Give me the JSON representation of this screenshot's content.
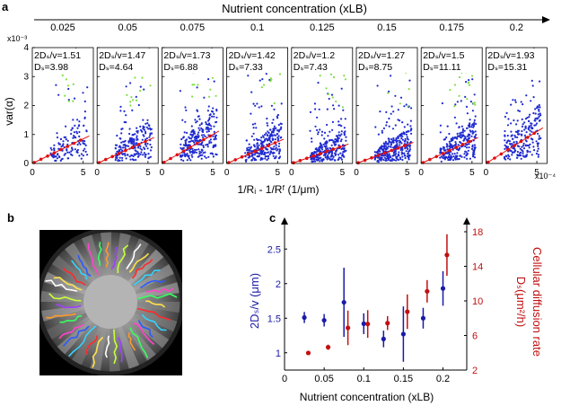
{
  "panel_labels": {
    "a": "a",
    "b": "b",
    "c": "c"
  },
  "chart_data": [
    {
      "type": "scatter",
      "title": "Nutrient concentration (xLB)",
      "concentrations": [
        "0.025",
        "0.05",
        "0.075",
        "0.1",
        "0.125",
        "0.15",
        "0.175",
        "0.2"
      ],
      "ylabel": "var(α)",
      "xlabel": "1/Rᵢ - 1/Rᶠ (1/μm)",
      "y_exponent": "x10⁻³",
      "x_exponent": "x10⁻⁴",
      "ylim": [
        0,
        4
      ],
      "yticks": [
        "0",
        "1",
        "2",
        "3",
        "4"
      ],
      "xlim": [
        0,
        6
      ],
      "xticks": [
        "0",
        "5"
      ],
      "subplots": [
        {
          "conc": 0.025,
          "ratio_label": "2Dₛ/v=1.51",
          "ds_label": "Dₛ=3.98",
          "slope": 0.17,
          "n_blue": 130,
          "n_green": 8
        },
        {
          "conc": 0.05,
          "ratio_label": "2Dₛ/v=1.47",
          "ds_label": "Dₛ=4.64",
          "slope": 0.16,
          "n_blue": 200,
          "n_green": 10
        },
        {
          "conc": 0.075,
          "ratio_label": "2Dₛ/v=1.73",
          "ds_label": "Dₛ=6.88",
          "slope": 0.2,
          "n_blue": 240,
          "n_green": 12
        },
        {
          "conc": 0.1,
          "ratio_label": "2Dₛ/v=1.42",
          "ds_label": "Dₛ=7.33",
          "slope": 0.15,
          "n_blue": 260,
          "n_green": 10
        },
        {
          "conc": 0.125,
          "ratio_label": "2Dₛ/v=1.2",
          "ds_label": "Dₛ=7.43",
          "slope": 0.12,
          "n_blue": 280,
          "n_green": 10
        },
        {
          "conc": 0.15,
          "ratio_label": "2Dₛ/v=1.27",
          "ds_label": "Dₛ=8.75",
          "slope": 0.13,
          "n_blue": 300,
          "n_green": 6
        },
        {
          "conc": 0.175,
          "ratio_label": "2Dₛ/v=1.5",
          "ds_label": "Dₛ=11.11",
          "slope": 0.16,
          "n_blue": 260,
          "n_green": 22
        },
        {
          "conc": 0.2,
          "ratio_label": "2Dₛ/v=1.93",
          "ds_label": "Dₛ=15.31",
          "slope": 0.22,
          "n_blue": 220,
          "n_green": 0
        }
      ]
    },
    {
      "type": "errorbar",
      "xlabel": "Nutrient concentration (xLB)",
      "xlim": [
        0,
        0.23
      ],
      "xticks": [
        "0",
        "0.05",
        "0.1",
        "0.15",
        "0.2"
      ],
      "left_axis": {
        "label": "2Dₛ/v (μm)",
        "color": "#1a1aa8",
        "ylim": [
          0.75,
          2.75
        ],
        "ticks": [
          "1",
          "1.5",
          "2",
          "2.5"
        ]
      },
      "right_axis": {
        "label_line1": "Cellular diffusion rate",
        "label_line2": "Dₛ(μm²/h)",
        "color": "#c01010",
        "ylim": [
          2,
          18
        ],
        "ticks": [
          "2",
          "6",
          "10",
          "14",
          "18"
        ]
      },
      "series": [
        {
          "name": "2Ds/v",
          "axis": "left",
          "x": [
            0.025,
            0.05,
            0.075,
            0.1,
            0.125,
            0.15,
            0.175,
            0.2
          ],
          "y": [
            1.51,
            1.47,
            1.73,
            1.42,
            1.2,
            1.27,
            1.5,
            1.93
          ],
          "err": [
            0.08,
            0.09,
            0.5,
            0.15,
            0.12,
            0.4,
            0.15,
            0.25
          ]
        },
        {
          "name": "Ds",
          "axis": "right",
          "x": [
            0.03,
            0.055,
            0.08,
            0.105,
            0.13,
            0.155,
            0.18,
            0.205
          ],
          "y": [
            3.98,
            4.64,
            6.88,
            7.33,
            7.43,
            8.75,
            11.11,
            15.31
          ],
          "err": [
            0.2,
            0.3,
            2.0,
            1.6,
            0.8,
            2.0,
            1.3,
            2.4
          ]
        }
      ]
    }
  ],
  "micrograph": {
    "colors": [
      "#ffe14a",
      "#ff2a2a",
      "#35d4ff",
      "#2a5aff",
      "#ff44cc",
      "#37ff60",
      "#ff9a2a",
      "#a040ff",
      "#c8ff3a",
      "#ffffff"
    ]
  }
}
